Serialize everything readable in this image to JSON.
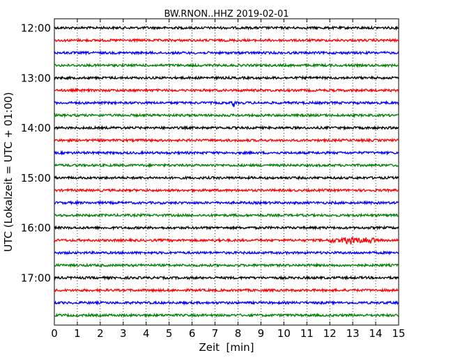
{
  "chart_data": {
    "type": "line",
    "title": "BW.RNON..HHZ 2019-02-01",
    "xlabel": "Zeit  [min]",
    "ylabel": "UTC (Lokalzeit = UTC + 01:00)",
    "xlim": [
      0,
      15
    ],
    "x_ticks": [
      "0",
      "1",
      "2",
      "3",
      "4",
      "5",
      "6",
      "7",
      "8",
      "9",
      "10",
      "11",
      "12",
      "13",
      "14",
      "15"
    ],
    "y_tick_labels": [
      "12:00",
      "13:00",
      "14:00",
      "15:00",
      "16:00",
      "17:00"
    ],
    "grid": "vertical dotted",
    "trace_colors": [
      "#000000",
      "#ff0000",
      "#0000ff",
      "#008000"
    ],
    "series": [
      {
        "start": "12:00",
        "color": "#000000"
      },
      {
        "start": "12:15",
        "color": "#ff0000"
      },
      {
        "start": "12:30",
        "color": "#0000ff"
      },
      {
        "start": "12:45",
        "color": "#008000"
      },
      {
        "start": "13:00",
        "color": "#000000"
      },
      {
        "start": "13:15",
        "color": "#ff0000"
      },
      {
        "start": "13:30",
        "color": "#0000ff",
        "events": [
          {
            "x": 7.8,
            "amplitude": "large"
          }
        ]
      },
      {
        "start": "13:45",
        "color": "#008000"
      },
      {
        "start": "14:00",
        "color": "#000000"
      },
      {
        "start": "14:15",
        "color": "#ff0000"
      },
      {
        "start": "14:30",
        "color": "#0000ff"
      },
      {
        "start": "14:45",
        "color": "#008000"
      },
      {
        "start": "15:00",
        "color": "#000000"
      },
      {
        "start": "15:15",
        "color": "#ff0000"
      },
      {
        "start": "15:30",
        "color": "#0000ff"
      },
      {
        "start": "15:45",
        "color": "#008000"
      },
      {
        "start": "16:00",
        "color": "#000000"
      },
      {
        "start": "16:15",
        "color": "#ff0000",
        "events": [
          {
            "x": 7.2,
            "amplitude": "small"
          },
          {
            "x": 13.0,
            "amplitude": "medium",
            "duration_min": 2.0
          }
        ]
      },
      {
        "start": "16:30",
        "color": "#0000ff"
      },
      {
        "start": "16:45",
        "color": "#008000"
      },
      {
        "start": "17:00",
        "color": "#000000"
      },
      {
        "start": "17:15",
        "color": "#ff0000"
      },
      {
        "start": "17:30",
        "color": "#0000ff"
      },
      {
        "start": "17:45",
        "color": "#008000"
      }
    ]
  }
}
